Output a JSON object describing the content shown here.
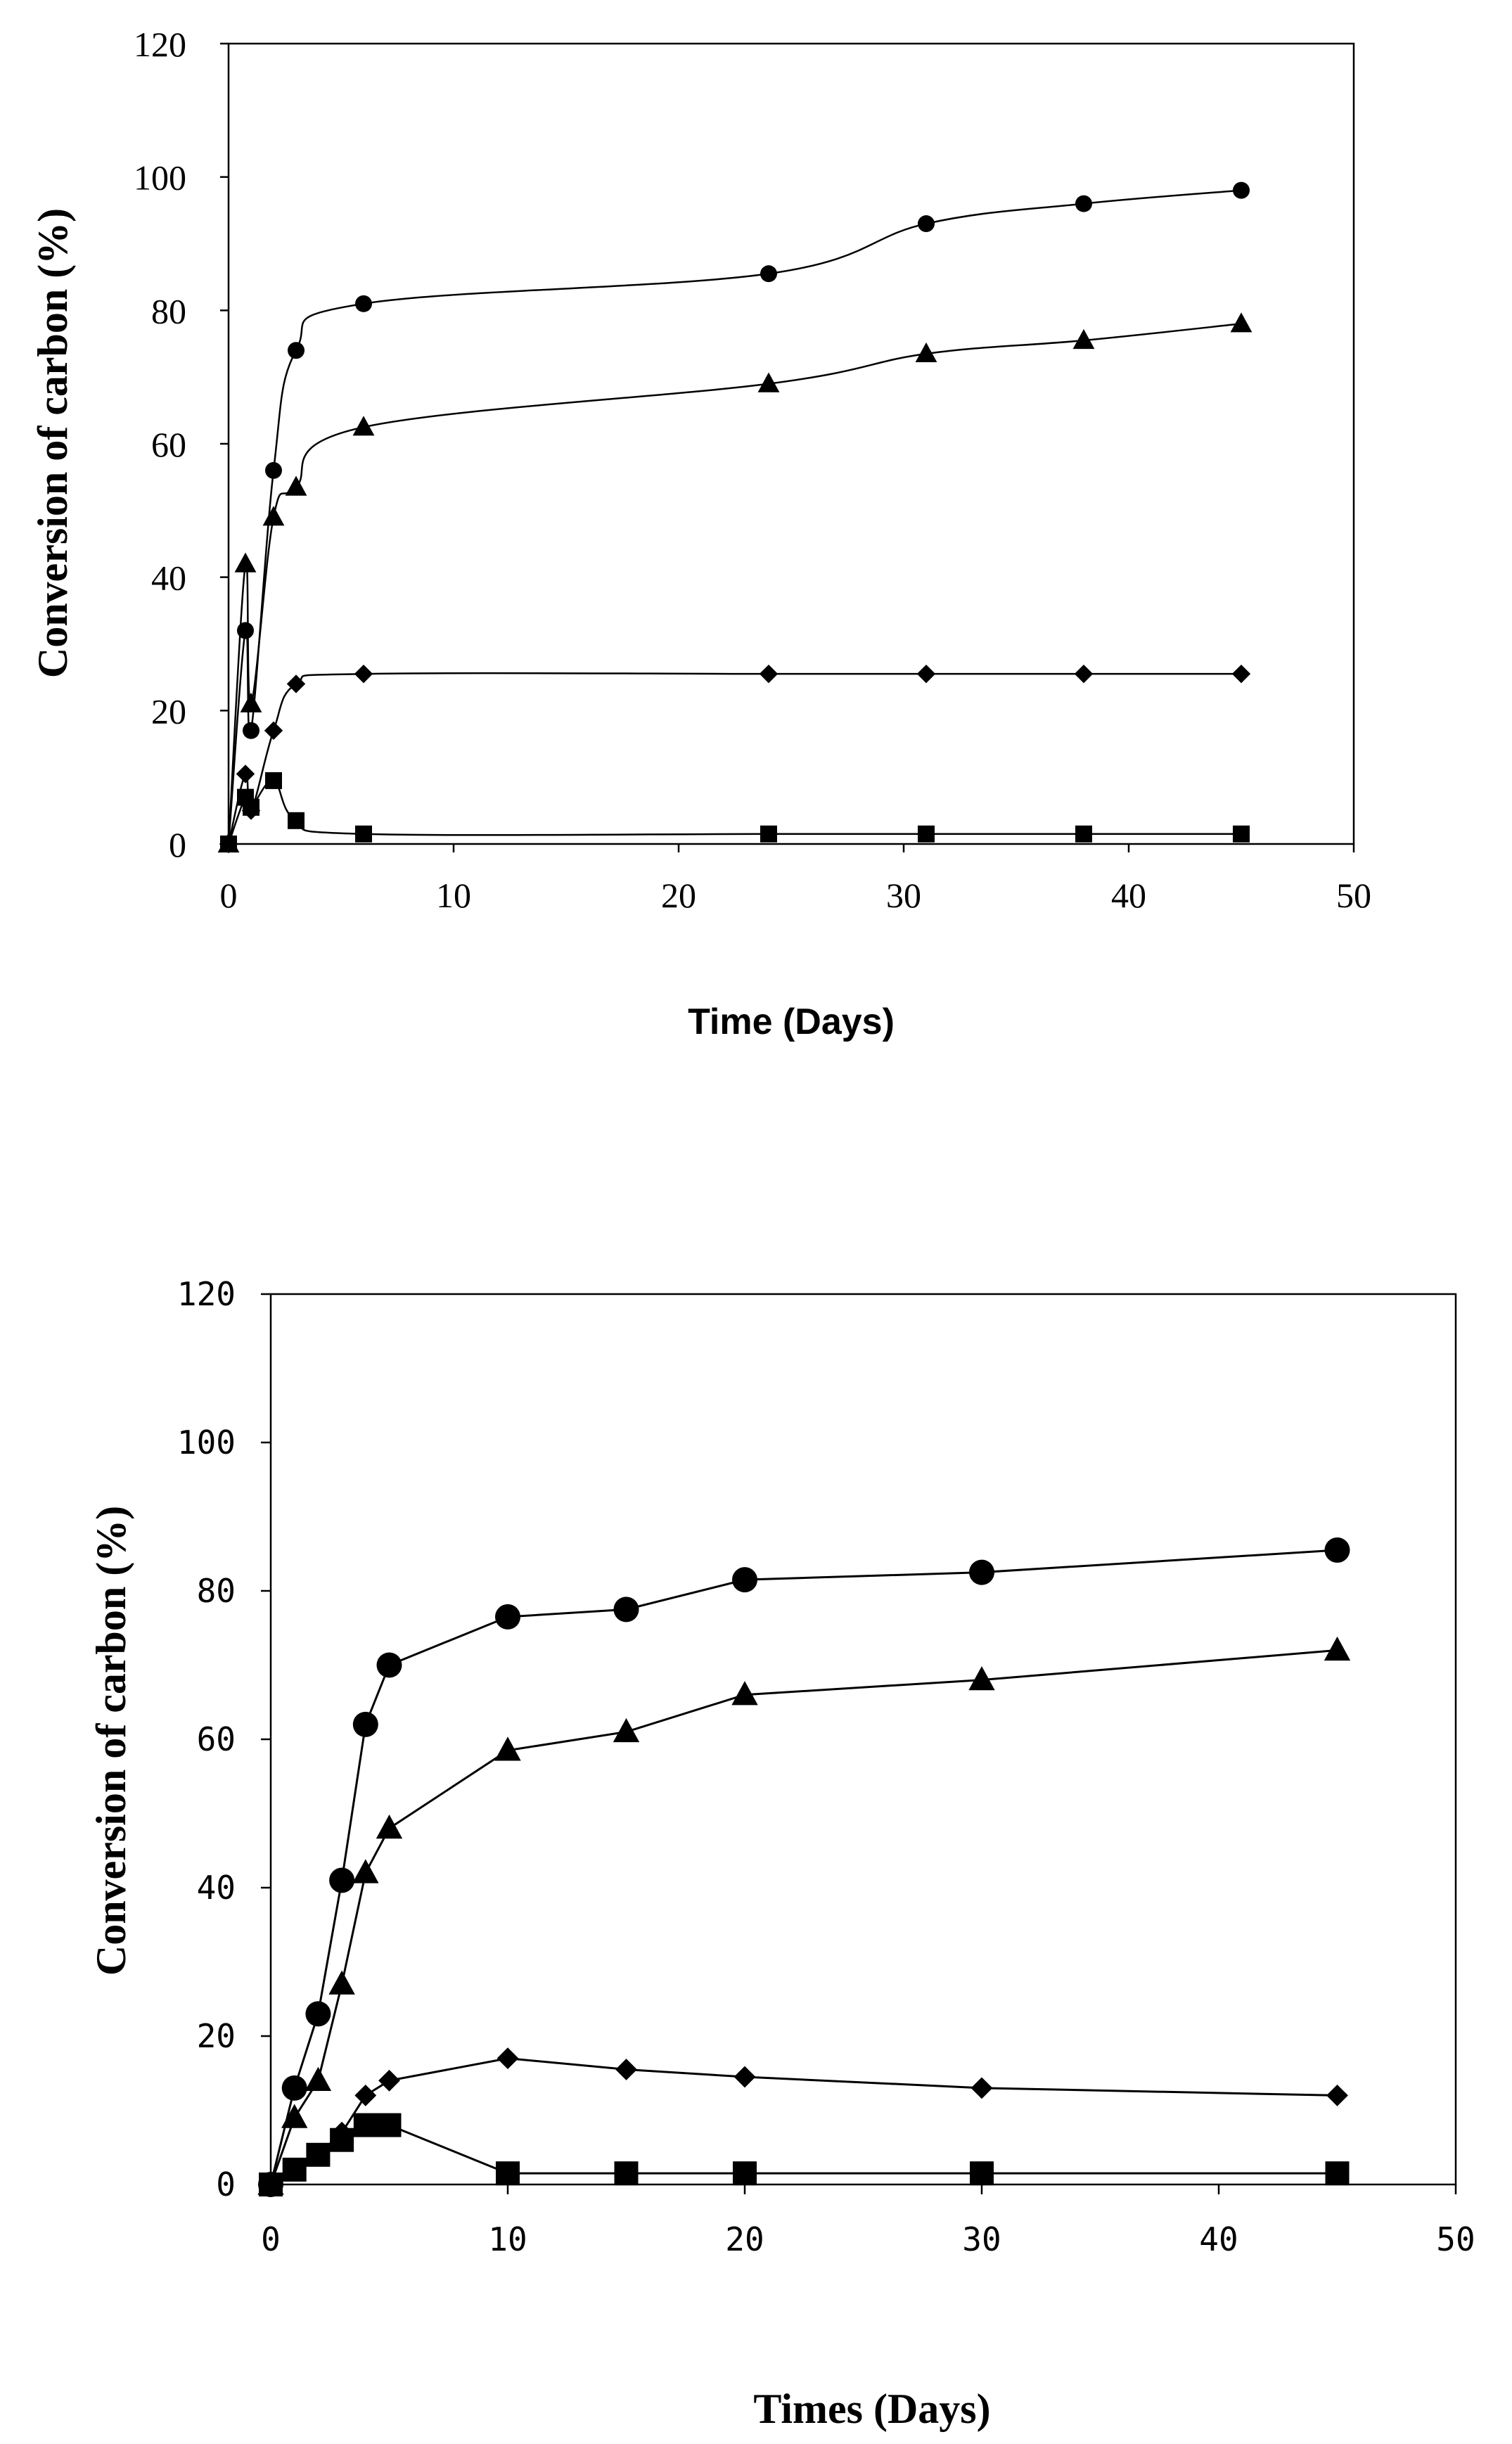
{
  "chart_data": [
    {
      "type": "line",
      "title": "",
      "xlabel": "Time (Days)",
      "ylabel": "Conversion of carbon (%)",
      "xlim": [
        0,
        50
      ],
      "ylim": [
        0,
        120
      ],
      "xticks": [
        "0",
        "10",
        "20",
        "30",
        "40",
        "50"
      ],
      "yticks": [
        "0",
        "20",
        "40",
        "60",
        "80",
        "100",
        "120"
      ],
      "grid": false,
      "legend": "none",
      "series": [
        {
          "name": "circle",
          "marker": "circle",
          "x": [
            0,
            0.75,
            1,
            2,
            3,
            6,
            24,
            31,
            38,
            45
          ],
          "y": [
            0,
            32,
            17,
            56,
            74,
            81,
            85.5,
            93,
            96,
            98
          ]
        },
        {
          "name": "triangle",
          "marker": "triangle",
          "x": [
            0,
            0.75,
            1,
            2,
            3,
            6,
            24,
            31,
            38,
            45
          ],
          "y": [
            0,
            42,
            21,
            49,
            53.5,
            62.5,
            69,
            73.5,
            75.5,
            78
          ]
        },
        {
          "name": "diamond",
          "marker": "diamond",
          "x": [
            0,
            0.75,
            1,
            2,
            3,
            6,
            24,
            31,
            38,
            45
          ],
          "y": [
            0,
            10.5,
            5,
            17,
            24,
            25.5,
            25.5,
            25.5,
            25.5,
            25.5
          ]
        },
        {
          "name": "square",
          "marker": "square",
          "x": [
            0,
            0.75,
            1,
            2,
            3,
            6,
            24,
            31,
            38,
            45
          ],
          "y": [
            0,
            7,
            5.5,
            9.5,
            3.5,
            1.5,
            1.5,
            1.5,
            1.5,
            1.5
          ]
        }
      ]
    },
    {
      "type": "line",
      "title": "",
      "xlabel": "Times (Days)",
      "ylabel": "Conversion of carbon (%)",
      "xlim": [
        0,
        50
      ],
      "ylim": [
        0,
        120
      ],
      "xticks": [
        "0",
        "10",
        "20",
        "30",
        "40",
        "50"
      ],
      "yticks": [
        "0",
        "20",
        "40",
        "60",
        "80",
        "100",
        "120"
      ],
      "grid": false,
      "legend": "none",
      "series": [
        {
          "name": "circle",
          "marker": "circle",
          "x": [
            0,
            1,
            2,
            3,
            4,
            5,
            10,
            15,
            20,
            30,
            45
          ],
          "y": [
            0,
            13,
            23,
            41,
            62,
            70,
            76.5,
            77.5,
            81.5,
            82.5,
            85.5
          ]
        },
        {
          "name": "triangle",
          "marker": "triangle",
          "x": [
            0,
            1,
            2,
            3,
            4,
            5,
            10,
            15,
            20,
            30,
            45
          ],
          "y": [
            0,
            9,
            14,
            27,
            42,
            48,
            58.5,
            61,
            66,
            68,
            72
          ]
        },
        {
          "name": "diamond",
          "marker": "diamond",
          "x": [
            0,
            1,
            2,
            3,
            4,
            5,
            10,
            15,
            20,
            30,
            45
          ],
          "y": [
            0,
            2,
            4,
            7,
            12,
            14,
            17,
            15.5,
            14.5,
            13,
            12
          ]
        },
        {
          "name": "square",
          "marker": "square",
          "x": [
            0,
            1,
            2,
            3,
            4,
            5,
            10,
            15,
            20,
            30,
            45
          ],
          "y": [
            0,
            2,
            4,
            6,
            8,
            8,
            1.5,
            1.5,
            1.5,
            1.5,
            1.5
          ]
        }
      ]
    }
  ]
}
